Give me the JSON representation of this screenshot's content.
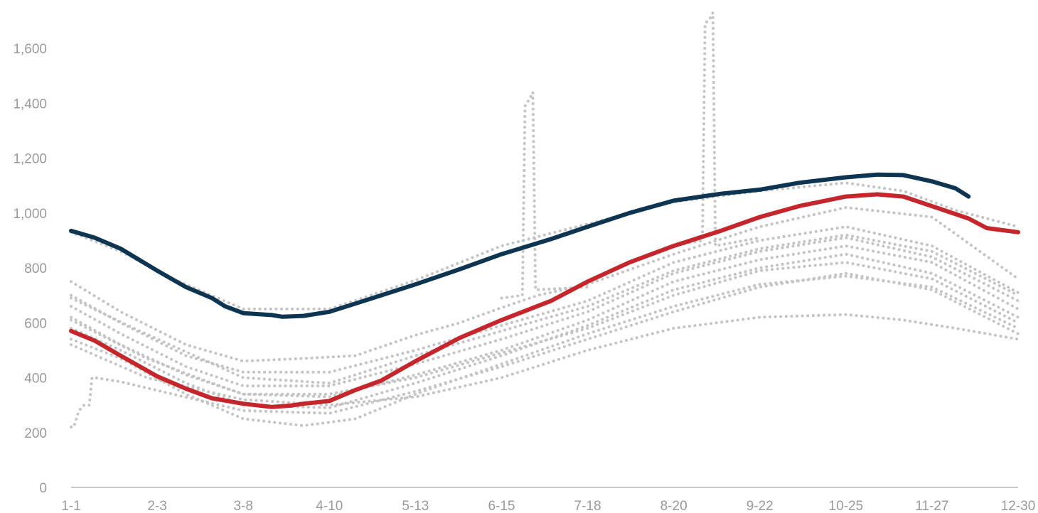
{
  "chart_data": {
    "type": "line",
    "x_unit": "day of year",
    "x_ticks": [
      {
        "x": 1,
        "label": "1-1"
      },
      {
        "x": 34,
        "label": "2-3"
      },
      {
        "x": 67,
        "label": "3-8"
      },
      {
        "x": 100,
        "label": "4-10"
      },
      {
        "x": 133,
        "label": "5-13"
      },
      {
        "x": 166,
        "label": "6-15"
      },
      {
        "x": 199,
        "label": "7-18"
      },
      {
        "x": 232,
        "label": "8-20"
      },
      {
        "x": 265,
        "label": "9-22"
      },
      {
        "x": 298,
        "label": "10-25"
      },
      {
        "x": 331,
        "label": "11-27"
      },
      {
        "x": 364,
        "label": "12-30"
      }
    ],
    "xlim": [
      1,
      364
    ],
    "ylim": [
      0,
      1700
    ],
    "y_ticks": [
      0,
      200,
      400,
      600,
      800,
      1000,
      1200,
      1400,
      1600
    ],
    "y_tick_labels": [
      "0",
      "200",
      "400",
      "600",
      "800",
      "1,000",
      "1,200",
      "1,400",
      "1,600"
    ],
    "grid": false,
    "legend": "none",
    "colors": {
      "highlight_navy": "#0d3552",
      "highlight_red": "#c5262c",
      "background": "#c4c4c4",
      "axis_text": "#9a9a9a"
    },
    "series": [
      {
        "style": "highlight_navy",
        "points": [
          [
            1,
            935
          ],
          [
            10,
            910
          ],
          [
            20,
            870
          ],
          [
            34,
            790
          ],
          [
            45,
            730
          ],
          [
            55,
            690
          ],
          [
            60,
            660
          ],
          [
            67,
            635
          ],
          [
            78,
            628
          ],
          [
            82,
            622
          ],
          [
            90,
            625
          ],
          [
            100,
            640
          ],
          [
            115,
            685
          ],
          [
            133,
            740
          ],
          [
            150,
            795
          ],
          [
            166,
            850
          ],
          [
            185,
            905
          ],
          [
            199,
            950
          ],
          [
            215,
            1000
          ],
          [
            232,
            1045
          ],
          [
            250,
            1070
          ],
          [
            265,
            1085
          ],
          [
            280,
            1110
          ],
          [
            298,
            1130
          ],
          [
            310,
            1140
          ],
          [
            320,
            1138
          ],
          [
            331,
            1115
          ],
          [
            340,
            1090
          ],
          [
            345,
            1060
          ]
        ]
      },
      {
        "style": "highlight_red",
        "points": [
          [
            1,
            570
          ],
          [
            10,
            535
          ],
          [
            20,
            480
          ],
          [
            34,
            405
          ],
          [
            45,
            360
          ],
          [
            55,
            325
          ],
          [
            67,
            305
          ],
          [
            78,
            293
          ],
          [
            85,
            298
          ],
          [
            90,
            305
          ],
          [
            100,
            315
          ],
          [
            110,
            355
          ],
          [
            120,
            390
          ],
          [
            133,
            460
          ],
          [
            150,
            545
          ],
          [
            166,
            610
          ],
          [
            185,
            680
          ],
          [
            199,
            750
          ],
          [
            215,
            820
          ],
          [
            232,
            880
          ],
          [
            250,
            935
          ],
          [
            265,
            985
          ],
          [
            280,
            1025
          ],
          [
            298,
            1060
          ],
          [
            310,
            1068
          ],
          [
            320,
            1060
          ],
          [
            331,
            1025
          ],
          [
            345,
            980
          ],
          [
            352,
            945
          ],
          [
            364,
            930
          ]
        ]
      },
      {
        "style": "background",
        "points": [
          [
            1,
            930
          ],
          [
            20,
            860
          ],
          [
            40,
            760
          ],
          [
            67,
            650
          ],
          [
            100,
            650
          ],
          [
            133,
            755
          ],
          [
            166,
            880
          ],
          [
            199,
            960
          ],
          [
            232,
            1040
          ],
          [
            265,
            1080
          ],
          [
            298,
            1110
          ],
          [
            320,
            1080
          ],
          [
            340,
            1010
          ],
          [
            364,
            950
          ]
        ]
      },
      {
        "style": "background",
        "points": [
          [
            1,
            750
          ],
          [
            20,
            640
          ],
          [
            45,
            520
          ],
          [
            67,
            460
          ],
          [
            90,
            470
          ],
          [
            110,
            480
          ],
          [
            133,
            555
          ],
          [
            150,
            600
          ],
          [
            166,
            655
          ],
          [
            180,
            700
          ],
          [
            199,
            740
          ],
          [
            232,
            850
          ],
          [
            265,
            950
          ],
          [
            298,
            1020
          ],
          [
            331,
            985
          ],
          [
            364,
            760
          ]
        ]
      },
      {
        "style": "background",
        "points": [
          [
            1,
            700
          ],
          [
            20,
            600
          ],
          [
            45,
            480
          ],
          [
            67,
            420
          ],
          [
            100,
            420
          ],
          [
            133,
            500
          ],
          [
            166,
            590
          ],
          [
            199,
            680
          ],
          [
            232,
            820
          ],
          [
            265,
            900
          ],
          [
            298,
            950
          ],
          [
            331,
            880
          ],
          [
            364,
            710
          ]
        ]
      },
      {
        "style": "background",
        "points": [
          [
            1,
            660
          ],
          [
            20,
            560
          ],
          [
            45,
            440
          ],
          [
            67,
            370
          ],
          [
            100,
            370
          ],
          [
            133,
            450
          ],
          [
            166,
            540
          ],
          [
            199,
            640
          ],
          [
            232,
            780
          ],
          [
            265,
            860
          ],
          [
            298,
            910
          ],
          [
            331,
            840
          ],
          [
            364,
            680
          ]
        ]
      },
      {
        "style": "background",
        "points": [
          [
            1,
            620
          ],
          [
            20,
            520
          ],
          [
            45,
            410
          ],
          [
            67,
            340
          ],
          [
            100,
            330
          ],
          [
            133,
            410
          ],
          [
            166,
            500
          ],
          [
            199,
            610
          ],
          [
            232,
            750
          ],
          [
            265,
            830
          ],
          [
            298,
            880
          ],
          [
            331,
            820
          ],
          [
            364,
            650
          ]
        ]
      },
      {
        "style": "background",
        "points": [
          [
            1,
            580
          ],
          [
            20,
            500
          ],
          [
            45,
            380
          ],
          [
            67,
            300
          ],
          [
            100,
            290
          ],
          [
            133,
            380
          ],
          [
            166,
            480
          ],
          [
            199,
            590
          ],
          [
            232,
            720
          ],
          [
            265,
            800
          ],
          [
            298,
            850
          ],
          [
            331,
            780
          ],
          [
            364,
            620
          ]
        ]
      },
      {
        "style": "background",
        "points": [
          [
            1,
            540
          ],
          [
            20,
            470
          ],
          [
            45,
            340
          ],
          [
            67,
            250
          ],
          [
            90,
            225
          ],
          [
            110,
            250
          ],
          [
            133,
            340
          ],
          [
            166,
            450
          ],
          [
            199,
            560
          ],
          [
            232,
            660
          ],
          [
            265,
            740
          ],
          [
            298,
            770
          ],
          [
            331,
            730
          ],
          [
            364,
            580
          ]
        ]
      },
      {
        "style": "background",
        "points": [
          [
            1,
            220
          ],
          [
            2,
            220
          ],
          [
            4,
            280
          ],
          [
            6,
            300
          ],
          [
            8,
            300
          ],
          [
            9,
            400
          ],
          [
            10,
            400
          ],
          [
            20,
            385
          ],
          [
            40,
            340
          ],
          [
            67,
            280
          ],
          [
            100,
            270
          ],
          [
            133,
            350
          ],
          [
            166,
            440
          ],
          [
            199,
            540
          ],
          [
            232,
            640
          ],
          [
            265,
            730
          ],
          [
            298,
            780
          ],
          [
            331,
            720
          ],
          [
            364,
            560
          ]
        ]
      },
      {
        "style": "background",
        "points": [
          [
            1,
            520
          ],
          [
            30,
            400
          ],
          [
            67,
            320
          ],
          [
            100,
            300
          ],
          [
            133,
            330
          ],
          [
            166,
            400
          ],
          [
            199,
            500
          ],
          [
            232,
            580
          ],
          [
            265,
            620
          ],
          [
            298,
            630
          ],
          [
            320,
            610
          ],
          [
            340,
            580
          ],
          [
            364,
            540
          ]
        ]
      },
      {
        "style": "background",
        "points": [
          [
            1,
            610
          ],
          [
            30,
            470
          ],
          [
            55,
            380
          ],
          [
            67,
            340
          ],
          [
            100,
            340
          ],
          [
            133,
            400
          ],
          [
            166,
            490
          ],
          [
            199,
            580
          ],
          [
            232,
            700
          ],
          [
            265,
            790
          ],
          [
            298,
            820
          ],
          [
            331,
            760
          ],
          [
            364,
            600
          ]
        ]
      },
      {
        "style": "background",
        "points": [
          [
            1,
            690
          ],
          [
            25,
            580
          ],
          [
            67,
            400
          ],
          [
            100,
            380
          ],
          [
            133,
            480
          ],
          [
            166,
            570
          ],
          [
            199,
            660
          ],
          [
            232,
            790
          ],
          [
            265,
            870
          ],
          [
            298,
            920
          ],
          [
            331,
            860
          ],
          [
            364,
            700
          ]
        ]
      },
      {
        "style": "background",
        "points": [
          [
            166,
            690
          ],
          [
            174,
            700
          ],
          [
            175,
            1390
          ],
          [
            177,
            1420
          ],
          [
            178,
            1440
          ],
          [
            179,
            720
          ],
          [
            199,
            730
          ]
        ]
      },
      {
        "style": "background",
        "points": [
          [
            232,
            880
          ],
          [
            243,
            900
          ],
          [
            244,
            1690
          ],
          [
            246,
            1710
          ],
          [
            247,
            1730
          ],
          [
            248,
            880
          ],
          [
            265,
            910
          ]
        ]
      }
    ]
  }
}
